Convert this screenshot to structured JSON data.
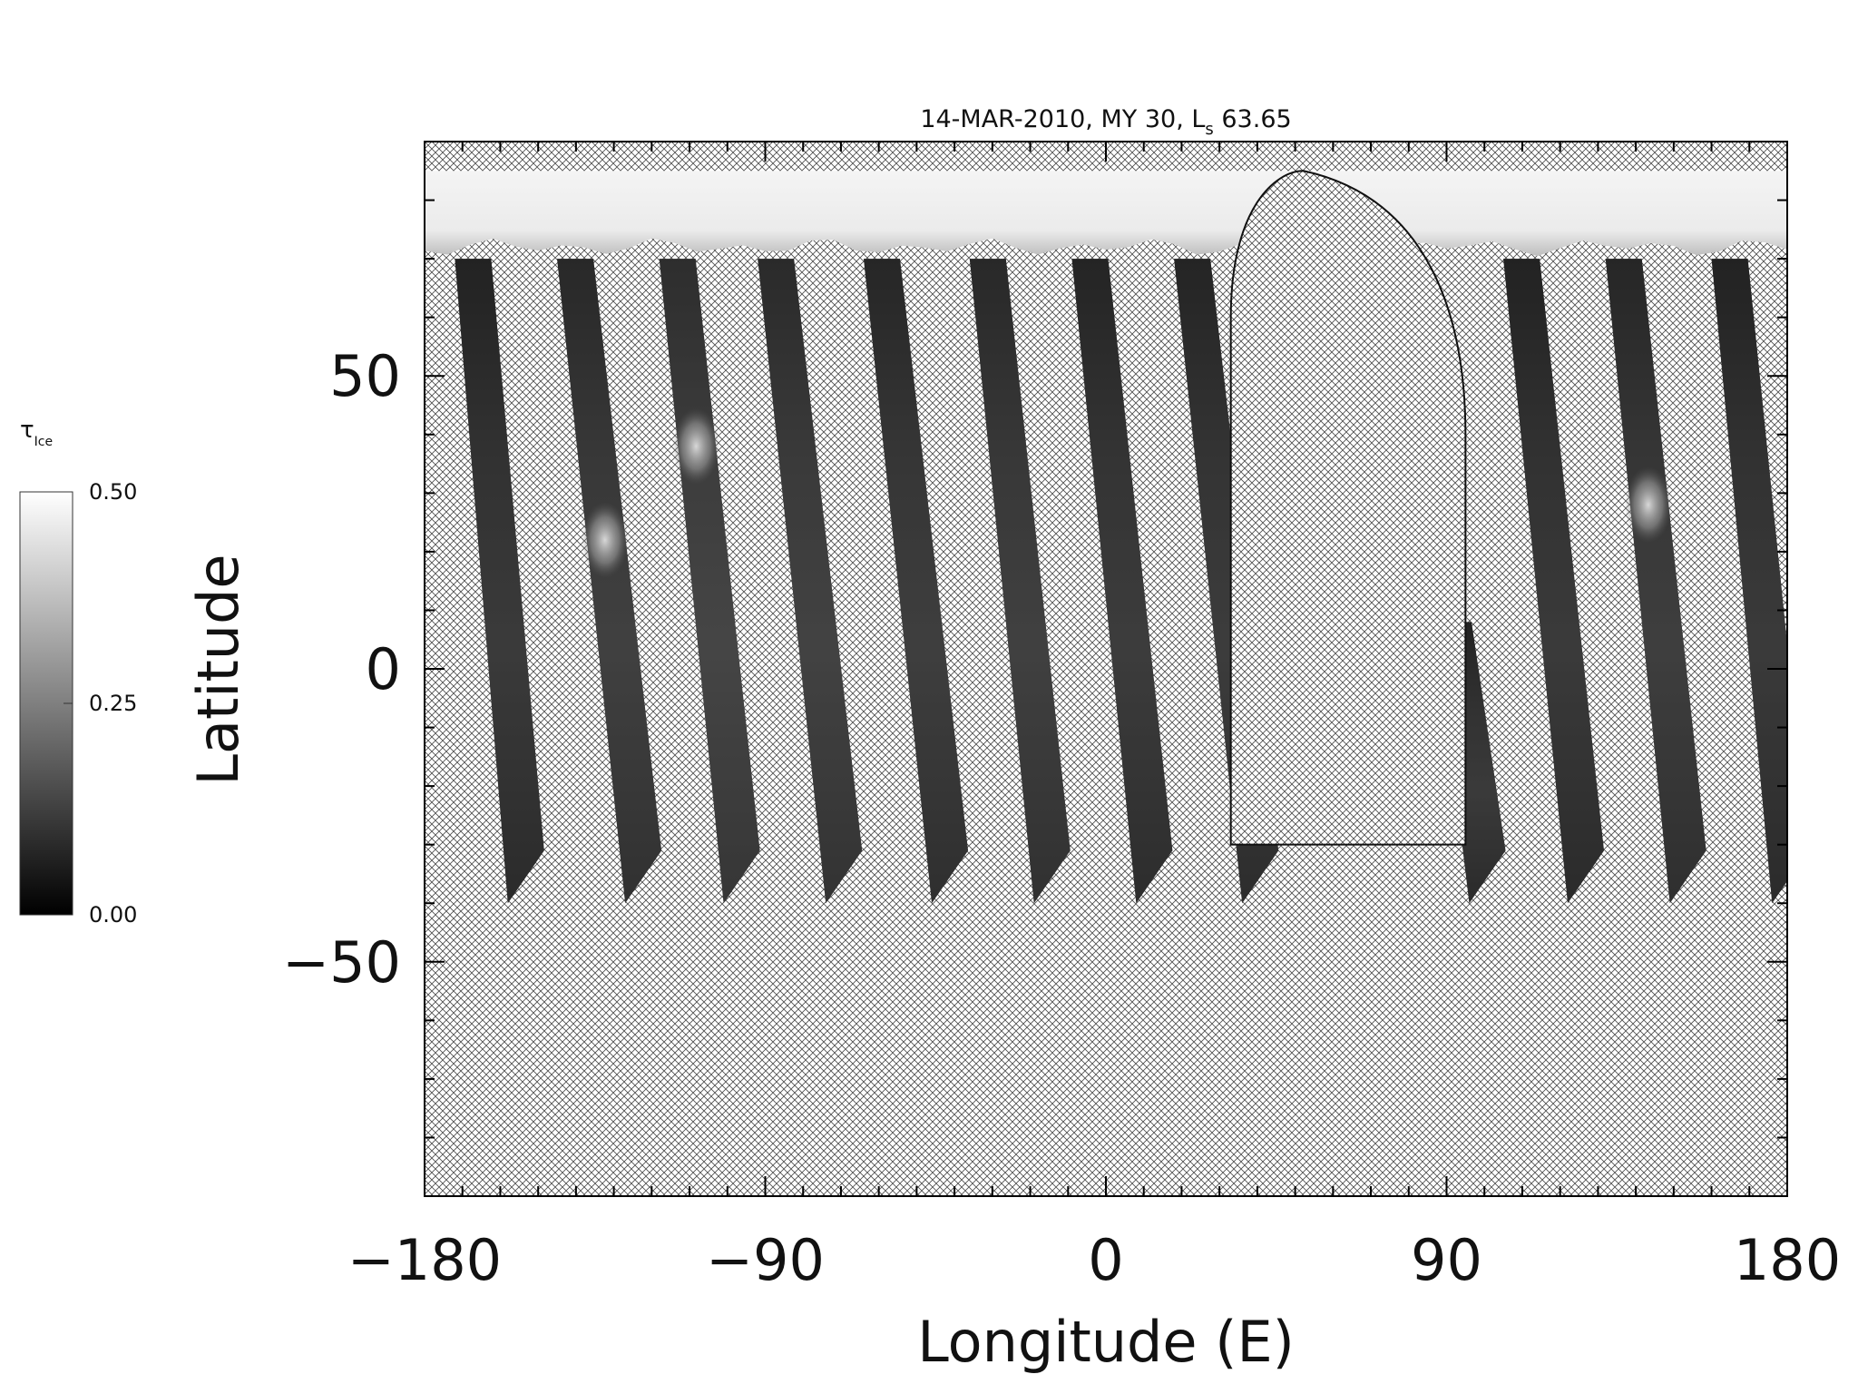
{
  "chart_data": {
    "type": "heatmap",
    "title": "14-MAR-2010, MY 30,  L",
    "title_subscript": "s",
    "title_suffix": " 63.65",
    "xlabel": "Longitude (E)",
    "ylabel": "Latitude",
    "xlim": [
      -180,
      180
    ],
    "ylim": [
      -90,
      90
    ],
    "xticks": [
      -180,
      -90,
      0,
      90,
      180
    ],
    "xtick_labels": [
      "−180",
      "−90",
      "0",
      "90",
      "180"
    ],
    "yticks": [
      -50,
      0,
      50
    ],
    "ytick_labels": [
      "−50",
      "0",
      "50"
    ],
    "xminor_step": 10,
    "yminor_step": 10,
    "colorbar": {
      "label": "τ",
      "label_subscript": "Ice",
      "min": 0.0,
      "max": 0.5,
      "ticks": [
        0.0,
        0.25,
        0.5
      ],
      "tick_labels": [
        "0.00",
        "0.25",
        "0.50"
      ],
      "colormap": "grayscale"
    },
    "no_data_pattern": "crosshatch",
    "north_polar_cap": {
      "lat_bottom": 72,
      "lat_top": 85,
      "tau_ice": 0.5
    },
    "swaths": [
      {
        "lon_top": -172,
        "lon_bottom": -158,
        "lat_top": 70,
        "lat_bottom": -40,
        "mean_tau": 0.12
      },
      {
        "lon_top": -145,
        "lon_bottom": -127,
        "lat_top": 70,
        "lat_bottom": -40,
        "mean_tau": 0.15,
        "bright_feature": {
          "lat": 22,
          "tau": 0.4
        }
      },
      {
        "lon_top": -118,
        "lon_bottom": -101,
        "lat_top": 70,
        "lat_bottom": -40,
        "mean_tau": 0.18,
        "bright_feature": {
          "lat": 38,
          "tau": 0.4
        }
      },
      {
        "lon_top": -92,
        "lon_bottom": -74,
        "lat_top": 70,
        "lat_bottom": -40,
        "mean_tau": 0.16
      },
      {
        "lon_top": -64,
        "lon_bottom": -46,
        "lat_top": 70,
        "lat_bottom": -40,
        "mean_tau": 0.14
      },
      {
        "lon_top": -36,
        "lon_bottom": -19,
        "lat_top": 70,
        "lat_bottom": -40,
        "mean_tau": 0.15
      },
      {
        "lon_top": -9,
        "lon_bottom": 8,
        "lat_top": 70,
        "lat_bottom": -40,
        "mean_tau": 0.13
      },
      {
        "lon_top": 18,
        "lon_bottom": 36,
        "lat_top": 70,
        "lat_bottom": -40,
        "mean_tau": 0.13
      },
      {
        "lon_top": 87,
        "lon_bottom": 96,
        "lat_top": 8,
        "lat_bottom": -40,
        "mean_tau": 0.12
      },
      {
        "lon_top": 105,
        "lon_bottom": 122,
        "lat_top": 70,
        "lat_bottom": -40,
        "mean_tau": 0.12
      },
      {
        "lon_top": 132,
        "lon_bottom": 149,
        "lat_top": 70,
        "lat_bottom": -40,
        "mean_tau": 0.14,
        "bright_feature": {
          "lat": 28,
          "tau": 0.35
        }
      },
      {
        "lon_top": 160,
        "lon_bottom": 176,
        "lat_top": 70,
        "lat_bottom": -40,
        "mean_tau": 0.12
      }
    ]
  }
}
